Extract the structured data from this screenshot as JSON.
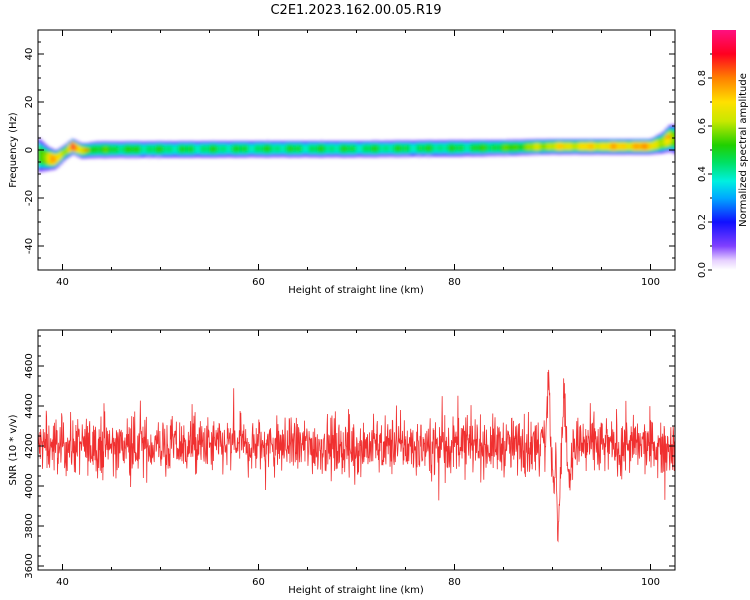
{
  "title": "C2E1.2023.162.00.05.R19",
  "colors": {
    "series": "#f03030",
    "axis": "#000000"
  },
  "chart_data": [
    {
      "type": "heatmap",
      "xlabel": "Height of straight line (km)",
      "ylabel": "Frequency (Hz)",
      "xlim": [
        37.5,
        102.5
      ],
      "ylim": [
        -50,
        50
      ],
      "xticks": [
        40,
        60,
        80,
        100
      ],
      "yticks": [
        -40,
        -20,
        0,
        20,
        40
      ],
      "colorbar": {
        "label": "Normalized spectral amplitude",
        "ticks": [
          0.0,
          0.2,
          0.4,
          0.6,
          0.8
        ],
        "tick_labels": [
          "0.0",
          "0.2",
          "0.4",
          "0.6",
          "0.8"
        ],
        "range": [
          0,
          1
        ]
      },
      "ridge": {
        "x": [
          37.5,
          38.5,
          39.3,
          40.2,
          41.0,
          42.0,
          43.5,
          50,
          60,
          70,
          80,
          85,
          90,
          95,
          100,
          101.2,
          102.0,
          102.5
        ],
        "freq": [
          -2,
          -3.5,
          -4,
          -1,
          1.5,
          -0.3,
          0.2,
          0.3,
          0.5,
          0.5,
          0.8,
          1.0,
          1.5,
          1.5,
          1.5,
          3.0,
          5.0,
          4.5
        ],
        "halfwidth": [
          6,
          4,
          3,
          2.5,
          2.5,
          2.5,
          2.8,
          2.8,
          2.8,
          2.8,
          2.8,
          2.7,
          2.5,
          2.5,
          2.5,
          3.5,
          4.5,
          5
        ],
        "intensity": [
          0.5,
          0.65,
          0.75,
          0.6,
          0.85,
          0.6,
          0.5,
          0.45,
          0.45,
          0.45,
          0.45,
          0.5,
          0.65,
          0.7,
          0.75,
          0.6,
          0.65,
          0.55
        ]
      },
      "hotspots": [
        {
          "x": 41.0,
          "freq": 1.5,
          "amp": 0.98
        },
        {
          "x": 42.4,
          "freq": 0.0,
          "amp": 0.92
        },
        {
          "x": 91.0,
          "freq": 1.5,
          "amp": 0.85
        },
        {
          "x": 101.8,
          "freq": 5.5,
          "amp": 0.95
        }
      ]
    },
    {
      "type": "line",
      "xlabel": "Height of straight line (km)",
      "ylabel": "SNR (10 * v/v)",
      "xlim": [
        37.5,
        102.5
      ],
      "ylim": [
        3580,
        4780
      ],
      "xticks": [
        40,
        60,
        80,
        100
      ],
      "yticks": [
        3600,
        3800,
        4000,
        4200,
        4400,
        4600
      ],
      "series": [
        {
          "baseline": 4200,
          "noise_amplitude": 70,
          "points": 1700,
          "features": [
            {
              "x": 89.0,
              "dy": 150
            },
            {
              "x": 89.6,
              "dy": 380
            },
            {
              "x": 90.1,
              "dy": -250
            },
            {
              "x": 90.6,
              "dy": -420
            },
            {
              "x": 91.2,
              "dy": 230
            },
            {
              "x": 91.7,
              "dy": -180
            }
          ]
        }
      ]
    }
  ]
}
